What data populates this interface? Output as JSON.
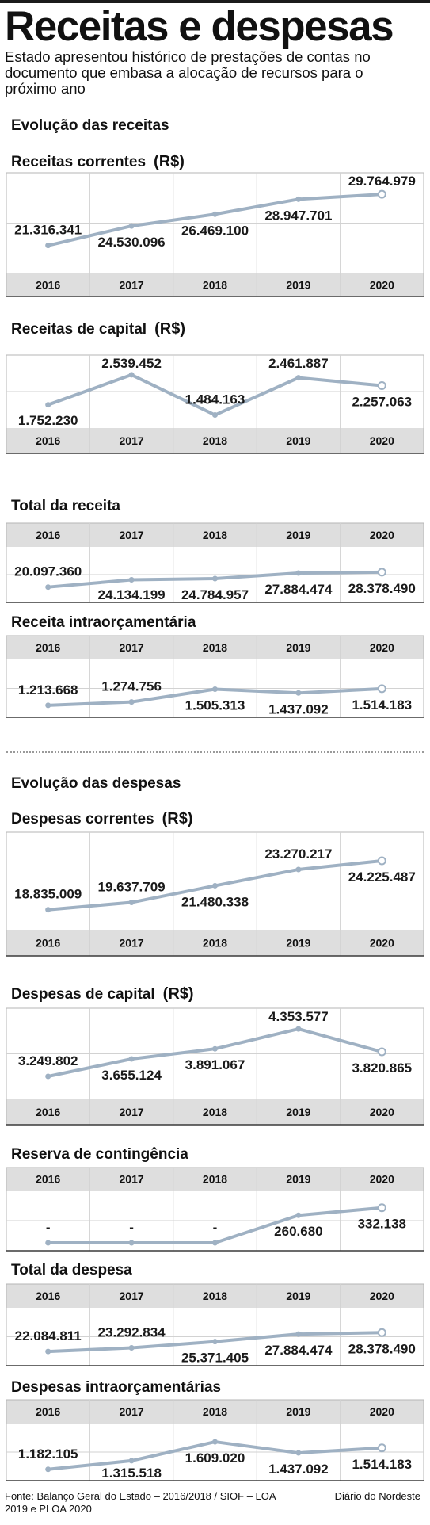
{
  "header": {
    "title": "Receitas e despesas",
    "subtitle": "Estado apresentou histórico de prestações de contas no documento que embasa a alocação de recursos para o próximo ano"
  },
  "sections": {
    "receitas": "Evolução das receitas",
    "despesas": "Evolução das despesas"
  },
  "footer": {
    "source": "Fonte: Balanço Geral do Estado – 2016/2018 / SIOF – LOA 2019 e PLOA 2020",
    "brand": "Diário do Nordeste"
  },
  "colors": {
    "line": "#9fb1c3",
    "axis_band": "#dedede",
    "grid": "#d2d2d2"
  },
  "chart_data": [
    {
      "type": "line",
      "title": "Receitas correntes",
      "unit": "(R$)",
      "year_axis": "bottom",
      "categories": [
        "2016",
        "2017",
        "2018",
        "2019",
        "2020"
      ],
      "values": [
        21316341,
        24530096,
        26469100,
        28947701,
        29764979
      ],
      "labels": [
        "21.316.341",
        "24.530.096",
        "26.469.100",
        "28.947.701",
        "29.764.979"
      ],
      "label_position": [
        "above",
        "below",
        "below",
        "below",
        "above"
      ],
      "ylim": [
        18000000,
        32000000
      ]
    },
    {
      "type": "line",
      "title": "Receitas de capital",
      "unit": "(R$)",
      "year_axis": "bottom",
      "categories": [
        "2016",
        "2017",
        "2018",
        "2019",
        "2020"
      ],
      "values": [
        1752230,
        2539452,
        1484163,
        2461887,
        2257063
      ],
      "labels": [
        "1.752.230",
        "2.539.452",
        "1.484.163",
        "2.461.887",
        "2.257.063"
      ],
      "label_position": [
        "below",
        "above",
        "above",
        "above",
        "below"
      ],
      "ylim": [
        1350000,
        2850000
      ]
    },
    {
      "type": "line",
      "title": "Total da receita",
      "unit": "",
      "year_axis": "top",
      "categories": [
        "2016",
        "2017",
        "2018",
        "2019",
        "2020"
      ],
      "values": [
        20097360,
        24134199,
        24784957,
        27884474,
        28378490
      ],
      "labels": [
        "20.097.360",
        "24.134.199",
        "24.784.957",
        "27.884.474",
        "28.378.490"
      ],
      "label_position": [
        "above",
        "below",
        "below",
        "below",
        "below"
      ],
      "ylim": [
        16000000,
        38000000
      ]
    },
    {
      "type": "line",
      "title": "Receita intraorçamentária",
      "unit": "",
      "year_axis": "top",
      "categories": [
        "2016",
        "2017",
        "2018",
        "2019",
        "2020"
      ],
      "values": [
        1213668,
        1274756,
        1505313,
        1437092,
        1514183
      ],
      "labels": [
        "1.213.668",
        "1.274.756",
        "1.505.313",
        "1.437.092",
        "1.514.183"
      ],
      "label_position": [
        "above",
        "above",
        "below",
        "below",
        "below"
      ],
      "ylim": [
        1140000,
        1900000
      ]
    },
    {
      "type": "line",
      "title": "Despesas correntes",
      "unit": "(R$)",
      "year_axis": "bottom",
      "categories": [
        "2016",
        "2017",
        "2018",
        "2019",
        "2020"
      ],
      "values": [
        18835009,
        19637709,
        21480338,
        23270217,
        24225487
      ],
      "labels": [
        "18.835.009",
        "19.637.709",
        "21.480.338",
        "23.270.217",
        "24.225.487"
      ],
      "label_position": [
        "above",
        "above",
        "below",
        "above",
        "below"
      ],
      "ylim": [
        17500000,
        26500000
      ]
    },
    {
      "type": "line",
      "title": "Despesas de capital",
      "unit": "(R$)",
      "year_axis": "bottom",
      "categories": [
        "2016",
        "2017",
        "2018",
        "2019",
        "2020"
      ],
      "values": [
        3249802,
        3655124,
        3891067,
        4353577,
        3820865
      ],
      "labels": [
        "3.249.802",
        "3.655.124",
        "3.891.067",
        "4.353.577",
        "3.820.865"
      ],
      "label_position": [
        "above",
        "below",
        "below",
        "above",
        "below"
      ],
      "ylim": [
        2900000,
        4650000
      ]
    },
    {
      "type": "line",
      "title": "Reserva de contingência",
      "unit": "",
      "year_axis": "top",
      "categories": [
        "2016",
        "2017",
        "2018",
        "2019",
        "2020"
      ],
      "values": [
        0,
        0,
        0,
        260680,
        332138
      ],
      "labels": [
        "-",
        "-",
        "-",
        "260.680",
        "332.138"
      ],
      "label_position": [
        "above",
        "above",
        "above",
        "below",
        "below"
      ],
      "ylim": [
        0,
        420000
      ]
    },
    {
      "type": "line",
      "title": "Total da despesa",
      "unit": "",
      "year_axis": "top",
      "categories": [
        "2016",
        "2017",
        "2018",
        "2019",
        "2020"
      ],
      "values": [
        22084811,
        23292834,
        25371405,
        27884474,
        28378490
      ],
      "labels": [
        "22.084.811",
        "23.292.834",
        "25.371.405",
        "27.884.474",
        "28.378.490"
      ],
      "label_position": [
        "above",
        "above",
        "below",
        "below",
        "below"
      ],
      "ylim": [
        20000000,
        34000000
      ]
    },
    {
      "type": "line",
      "title": "Despesas intraorçamentárias",
      "unit": "",
      "year_axis": "top",
      "categories": [
        "2016",
        "2017",
        "2018",
        "2019",
        "2020"
      ],
      "values": [
        1182105,
        1315518,
        1609020,
        1437092,
        1514183
      ],
      "labels": [
        "1.182.105",
        "1.315.518",
        "1.609.020",
        "1.437.092",
        "1.514.183"
      ],
      "label_position": [
        "above",
        "below",
        "below",
        "below",
        "below"
      ],
      "ylim": [
        1130000,
        1770000
      ]
    }
  ]
}
